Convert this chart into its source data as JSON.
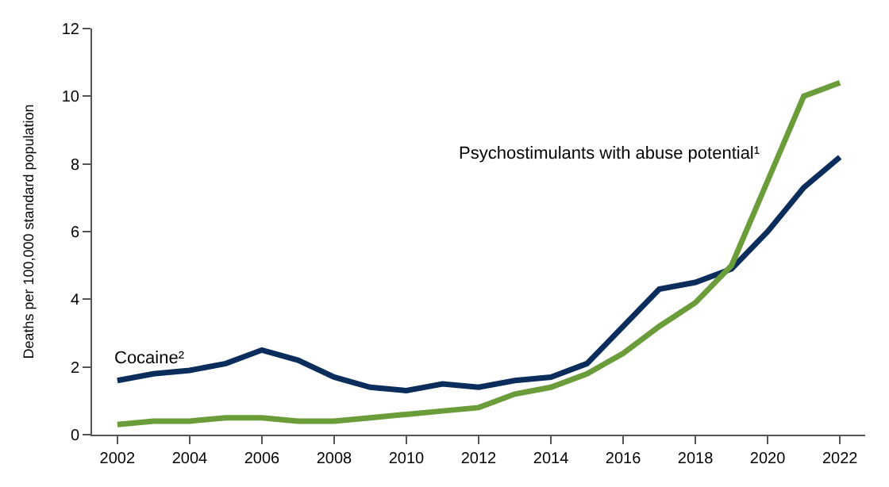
{
  "chart_data": {
    "type": "line",
    "ylabel": "Deaths per 100,000 standard population",
    "x": [
      2002,
      2003,
      2004,
      2005,
      2006,
      2007,
      2008,
      2009,
      2010,
      2011,
      2012,
      2013,
      2014,
      2015,
      2016,
      2017,
      2018,
      2019,
      2020,
      2021,
      2022
    ],
    "series": [
      {
        "name": "Cocaine²",
        "color": "#0b2d5c",
        "values": [
          1.6,
          1.8,
          1.9,
          2.1,
          2.5,
          2.2,
          1.7,
          1.4,
          1.3,
          1.5,
          1.4,
          1.6,
          1.7,
          2.1,
          3.2,
          4.3,
          4.5,
          4.9,
          6.0,
          7.3,
          8.2
        ]
      },
      {
        "name": "Psychostimulants with abuse potential¹",
        "color": "#6b9c3a",
        "values": [
          0.3,
          0.4,
          0.4,
          0.5,
          0.5,
          0.4,
          0.4,
          0.5,
          0.6,
          0.7,
          0.8,
          1.2,
          1.4,
          1.8,
          2.4,
          3.2,
          3.9,
          5.0,
          7.5,
          10.0,
          10.4
        ]
      }
    ],
    "xlim": [
      2001.3,
      2022.7
    ],
    "xticks": [
      2002,
      2004,
      2006,
      2008,
      2010,
      2012,
      2014,
      2016,
      2018,
      2020,
      2022
    ],
    "ylim": [
      0,
      12
    ],
    "yticks": [
      0,
      2,
      4,
      6,
      8,
      10,
      12
    ],
    "legend": false,
    "line_style": "solid",
    "marker": "none"
  }
}
